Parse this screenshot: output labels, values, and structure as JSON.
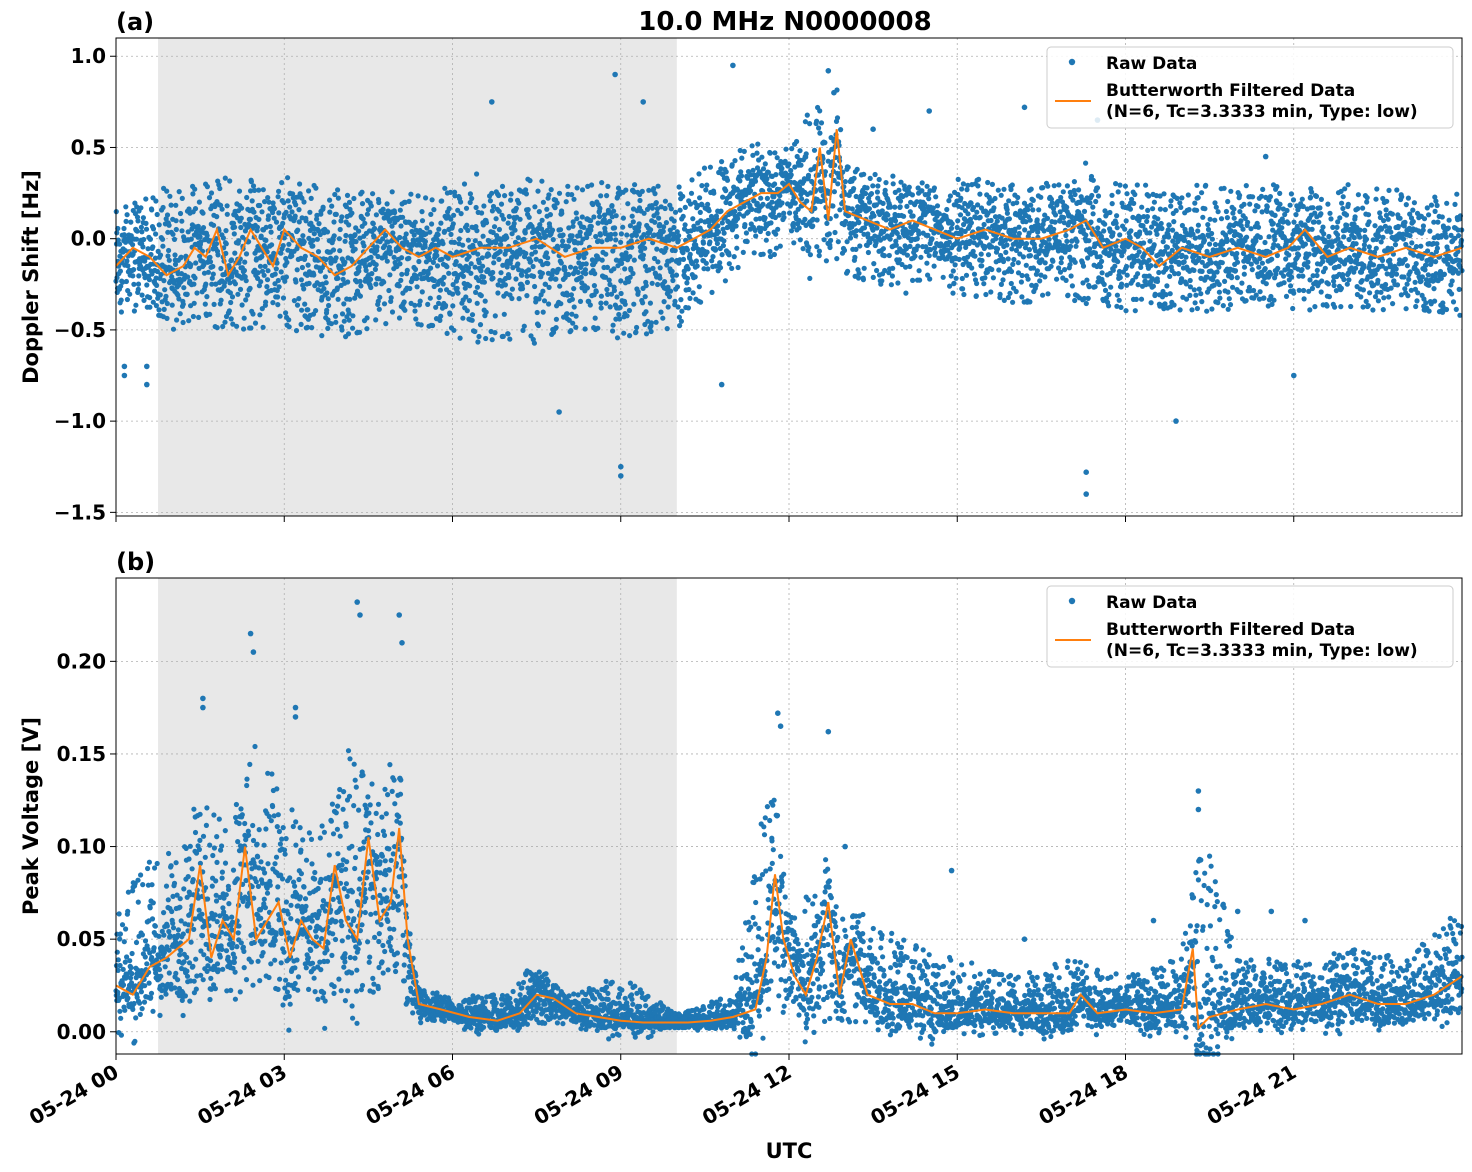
{
  "figure": {
    "title": "10.0 MHz N0000008",
    "xlabel": "UTC",
    "x_ticks": [
      "05-24 00",
      "05-24 03",
      "05-24 06",
      "05-24 09",
      "05-24 12",
      "05-24 15",
      "05-24 18",
      "05-24 21"
    ],
    "colors": {
      "raw": "#1f77b4",
      "filtered": "#ff7f0e",
      "shade": "#e8e8e8",
      "grid": "#b0b0b0"
    }
  },
  "chart_data": [
    {
      "type": "scatter",
      "panel_label": "(a)",
      "ylabel": "Doppler Shift [Hz]",
      "xlim_hours": [
        0,
        24
      ],
      "ylim": [
        -1.52,
        1.1
      ],
      "y_ticks": [
        "1.0",
        "0.5",
        "0.0",
        "−0.5",
        "−1.0",
        "−1.5"
      ],
      "y_tick_values": [
        1.0,
        0.5,
        0.0,
        -0.5,
        -1.0,
        -1.5
      ],
      "shaded_region_hours": [
        0.75,
        10.0
      ],
      "grid": true,
      "legend_position": "top-right",
      "legend": {
        "raw": "Raw Data",
        "filtered_line1": "Butterworth Filtered Data",
        "filtered_line2": "(N=6, Tc=3.3333 min, Type: low)"
      },
      "series": [
        {
          "name": "Raw Data",
          "kind": "points",
          "band_hours": [
            0,
            1,
            2,
            3,
            4,
            5,
            6,
            7,
            8,
            9,
            10,
            11,
            12,
            12.5,
            13,
            14,
            15,
            16,
            17,
            18,
            19,
            20,
            21,
            22,
            23,
            24
          ],
          "band_low": [
            -0.4,
            -0.45,
            -0.5,
            -0.5,
            -0.55,
            -0.45,
            -0.55,
            -0.6,
            -0.55,
            -0.55,
            -0.5,
            -0.2,
            -0.05,
            -0.1,
            -0.2,
            -0.3,
            -0.3,
            -0.35,
            -0.35,
            -0.4,
            -0.4,
            -0.4,
            -0.4,
            -0.4,
            -0.4,
            -0.45
          ],
          "band_high": [
            0.15,
            0.3,
            0.35,
            0.3,
            0.3,
            0.2,
            0.3,
            0.3,
            0.3,
            0.3,
            0.3,
            0.5,
            0.45,
            0.8,
            0.4,
            0.35,
            0.35,
            0.3,
            0.35,
            0.3,
            0.3,
            0.3,
            0.3,
            0.3,
            0.25,
            0.25
          ],
          "outliers": [
            [
              0.15,
              -0.7
            ],
            [
              0.15,
              -0.75
            ],
            [
              0.55,
              -0.7
            ],
            [
              0.55,
              -0.8
            ],
            [
              8.9,
              0.9
            ],
            [
              9.0,
              -1.25
            ],
            [
              9.0,
              -1.3
            ],
            [
              7.9,
              -0.95
            ],
            [
              9.4,
              0.75
            ],
            [
              11.0,
              0.95
            ],
            [
              12.7,
              0.92
            ],
            [
              12.8,
              0.8
            ],
            [
              17.3,
              -1.4
            ],
            [
              17.3,
              -1.28
            ],
            [
              18.9,
              -1.0
            ],
            [
              16.2,
              0.72
            ],
            [
              17.5,
              0.65
            ],
            [
              10.8,
              -0.8
            ],
            [
              13.5,
              0.6
            ],
            [
              14.5,
              0.7
            ],
            [
              20.5,
              0.45
            ],
            [
              21.0,
              -0.75
            ],
            [
              6.7,
              0.75
            ]
          ]
        },
        {
          "name": "Butterworth Filtered Data",
          "kind": "line",
          "x_hours": [
            0,
            0.3,
            0.6,
            0.9,
            1.2,
            1.4,
            1.6,
            1.8,
            2.0,
            2.2,
            2.4,
            2.6,
            2.8,
            3.0,
            3.3,
            3.6,
            3.9,
            4.2,
            4.5,
            4.8,
            5.1,
            5.4,
            5.7,
            6.0,
            6.5,
            7.0,
            7.5,
            8.0,
            8.5,
            9.0,
            9.5,
            10.0,
            10.3,
            10.6,
            10.9,
            11.2,
            11.5,
            11.8,
            12.0,
            12.2,
            12.4,
            12.55,
            12.7,
            12.85,
            13.0,
            13.4,
            13.8,
            14.2,
            14.6,
            15.0,
            15.5,
            16.0,
            16.5,
            17.0,
            17.3,
            17.6,
            18.0,
            18.3,
            18.6,
            19.0,
            19.5,
            20.0,
            20.5,
            20.9,
            21.2,
            21.6,
            22.0,
            22.5,
            23.0,
            23.5,
            24.0
          ],
          "y": [
            -0.15,
            -0.05,
            -0.1,
            -0.2,
            -0.15,
            -0.05,
            -0.1,
            0.05,
            -0.2,
            -0.1,
            0.05,
            -0.05,
            -0.15,
            0.05,
            -0.05,
            -0.1,
            -0.2,
            -0.15,
            -0.05,
            0.05,
            -0.05,
            -0.1,
            -0.05,
            -0.1,
            -0.05,
            -0.05,
            0.0,
            -0.1,
            -0.05,
            -0.05,
            0.0,
            -0.05,
            0.0,
            0.05,
            0.15,
            0.2,
            0.25,
            0.25,
            0.3,
            0.2,
            0.15,
            0.5,
            0.1,
            0.6,
            0.15,
            0.1,
            0.05,
            0.1,
            0.05,
            0.0,
            0.05,
            0.0,
            0.0,
            0.05,
            0.1,
            -0.05,
            0.0,
            -0.05,
            -0.15,
            -0.05,
            -0.1,
            -0.05,
            -0.1,
            -0.05,
            0.05,
            -0.1,
            -0.05,
            -0.1,
            -0.05,
            -0.1,
            -0.05
          ]
        }
      ]
    },
    {
      "type": "scatter",
      "panel_label": "(b)",
      "ylabel": "Peak Voltage [V]",
      "xlim_hours": [
        0,
        24
      ],
      "ylim": [
        -0.012,
        0.245
      ],
      "y_ticks": [
        "0.00",
        "0.05",
        "0.10",
        "0.15",
        "0.20"
      ],
      "y_tick_values": [
        0.0,
        0.05,
        0.1,
        0.15,
        0.2
      ],
      "shaded_region_hours": [
        0.75,
        10.0
      ],
      "grid": true,
      "legend_position": "top-right",
      "legend": {
        "raw": "Raw Data",
        "filtered_line1": "Butterworth Filtered Data",
        "filtered_line2": "(N=6, Tc=3.3333 min, Type: low)"
      },
      "series": [
        {
          "name": "Raw Data",
          "kind": "points",
          "band_hours": [
            0,
            0.5,
            1.0,
            1.5,
            2.0,
            2.4,
            2.8,
            3.2,
            3.6,
            4.0,
            4.3,
            4.6,
            5.0,
            5.2,
            5.4,
            6.0,
            7.0,
            7.5,
            8.0,
            9.0,
            10.0,
            11.0,
            11.7,
            12.0,
            12.5,
            13.0,
            14.0,
            15.0,
            16.0,
            17.0,
            18.0,
            19.0,
            19.3,
            20.0,
            21.0,
            22.0,
            23.0,
            24.0
          ],
          "band_low": [
            0.01,
            0.015,
            0.02,
            0.02,
            0.02,
            0.02,
            0.015,
            0.02,
            0.015,
            0.02,
            0.02,
            0.02,
            0.03,
            0.01,
            0.005,
            0.003,
            0.002,
            0.005,
            0.003,
            0.002,
            0.002,
            0.002,
            0.01,
            0.005,
            0.005,
            0.003,
            0.003,
            0.002,
            0.002,
            0.003,
            0.002,
            0.002,
            0.002,
            0.003,
            0.003,
            0.005,
            0.005,
            0.01
          ],
          "band_high": [
            0.07,
            0.09,
            0.1,
            0.13,
            0.11,
            0.16,
            0.14,
            0.12,
            0.1,
            0.16,
            0.15,
            0.12,
            0.16,
            0.05,
            0.025,
            0.02,
            0.02,
            0.04,
            0.02,
            0.03,
            0.01,
            0.02,
            0.15,
            0.06,
            0.09,
            0.07,
            0.05,
            0.04,
            0.03,
            0.04,
            0.03,
            0.04,
            0.12,
            0.04,
            0.04,
            0.045,
            0.04,
            0.07
          ],
          "outliers": [
            [
              1.55,
              0.18
            ],
            [
              1.55,
              0.175
            ],
            [
              2.4,
              0.215
            ],
            [
              2.45,
              0.205
            ],
            [
              3.2,
              0.175
            ],
            [
              3.2,
              0.17
            ],
            [
              4.3,
              0.232
            ],
            [
              4.35,
              0.225
            ],
            [
              5.05,
              0.225
            ],
            [
              5.1,
              0.21
            ],
            [
              11.8,
              0.172
            ],
            [
              11.85,
              0.165
            ],
            [
              12.7,
              0.162
            ],
            [
              13.0,
              0.1
            ],
            [
              14.9,
              0.087
            ],
            [
              19.3,
              0.13
            ],
            [
              19.3,
              0.12
            ],
            [
              20.0,
              0.065
            ],
            [
              20.6,
              0.065
            ],
            [
              21.2,
              0.06
            ],
            [
              16.2,
              0.05
            ],
            [
              18.5,
              0.06
            ]
          ]
        },
        {
          "name": "Butterworth Filtered Data",
          "kind": "line",
          "x_hours": [
            0,
            0.3,
            0.6,
            0.9,
            1.1,
            1.3,
            1.5,
            1.7,
            1.9,
            2.1,
            2.3,
            2.5,
            2.7,
            2.9,
            3.1,
            3.3,
            3.5,
            3.7,
            3.9,
            4.1,
            4.3,
            4.5,
            4.7,
            4.9,
            5.05,
            5.2,
            5.4,
            5.8,
            6.3,
            6.8,
            7.2,
            7.5,
            7.8,
            8.2,
            8.6,
            9.0,
            9.4,
            9.8,
            10.2,
            10.6,
            11.0,
            11.4,
            11.6,
            11.75,
            11.9,
            12.1,
            12.3,
            12.5,
            12.7,
            12.9,
            13.1,
            13.4,
            13.8,
            14.2,
            14.6,
            15.0,
            15.5,
            16.0,
            16.5,
            17.0,
            17.2,
            17.5,
            18.0,
            18.5,
            19.0,
            19.2,
            19.3,
            19.5,
            20.0,
            20.5,
            21.0,
            21.5,
            22.0,
            22.5,
            23.0,
            23.5,
            24.0
          ],
          "y": [
            0.025,
            0.02,
            0.035,
            0.04,
            0.045,
            0.05,
            0.09,
            0.04,
            0.06,
            0.05,
            0.1,
            0.05,
            0.06,
            0.07,
            0.04,
            0.06,
            0.05,
            0.045,
            0.09,
            0.06,
            0.05,
            0.105,
            0.06,
            0.07,
            0.11,
            0.05,
            0.015,
            0.012,
            0.008,
            0.006,
            0.01,
            0.02,
            0.018,
            0.01,
            0.008,
            0.006,
            0.005,
            0.005,
            0.005,
            0.006,
            0.008,
            0.012,
            0.04,
            0.085,
            0.05,
            0.03,
            0.02,
            0.04,
            0.07,
            0.02,
            0.05,
            0.02,
            0.015,
            0.015,
            0.01,
            0.01,
            0.012,
            0.01,
            0.01,
            0.01,
            0.02,
            0.01,
            0.012,
            0.01,
            0.012,
            0.045,
            0.002,
            0.008,
            0.012,
            0.015,
            0.012,
            0.015,
            0.02,
            0.015,
            0.015,
            0.02,
            0.03
          ]
        }
      ]
    }
  ]
}
